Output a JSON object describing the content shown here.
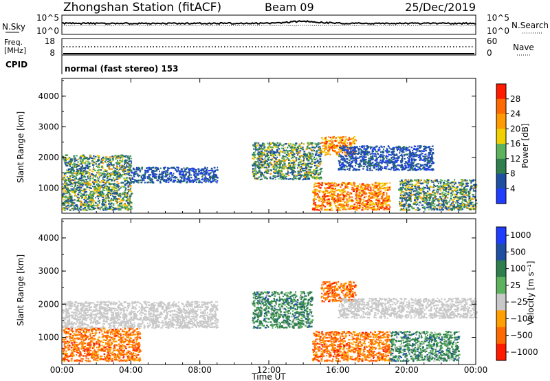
{
  "header": {
    "station": "Zhongshan Station (fitACF)",
    "beam": "Beam 09",
    "date": "25/Dec/2019"
  },
  "panels": {
    "nsky": {
      "label": "N.Sky",
      "top_tick": "10^5",
      "bottom_tick": "10^0",
      "right_top_tick": "10^5",
      "right_bottom_tick": "10^0",
      "right_label": "N.Search"
    },
    "freq": {
      "label_line1": "Freq.",
      "label_line2": "[MHz]",
      "top_tick": "18",
      "bottom_tick": "8",
      "right_top_tick": "60",
      "right_bottom_tick": "0",
      "right_label": "Nave"
    },
    "cpid": {
      "label": "CPID",
      "text": "normal (fast stereo) 153"
    }
  },
  "chart_data": [
    {
      "type": "heatmap",
      "name": "power",
      "ylabel": "Slant Range [km]",
      "yticks": [
        1000,
        2000,
        3000,
        4000
      ],
      "ylim": [
        180,
        4580
      ],
      "xlim_hours": [
        0,
        24
      ],
      "colorbar": {
        "label": "Power [dB]",
        "ticks": [
          "4",
          "8",
          "12",
          "16",
          "20",
          "24",
          "28"
        ],
        "colors": [
          "#1f3cff",
          "#1f4fa3",
          "#2e7e4e",
          "#5db35d",
          "#f0d000",
          "#ff9a00",
          "#ff6a00",
          "#ff1a00"
        ]
      },
      "regions": [
        {
          "t0": 0.0,
          "t1": 4.0,
          "r0": 300,
          "r1": 2100,
          "level": "mixed"
        },
        {
          "t0": 4.0,
          "t1": 9.0,
          "r0": 1200,
          "r1": 1700,
          "level": "low"
        },
        {
          "t0": 11.0,
          "t1": 15.0,
          "r0": 1300,
          "r1": 2500,
          "level": "mixed"
        },
        {
          "t0": 14.5,
          "t1": 19.0,
          "r0": 300,
          "r1": 1200,
          "level": "high"
        },
        {
          "t0": 15.0,
          "t1": 17.0,
          "r0": 2100,
          "r1": 2700,
          "level": "high"
        },
        {
          "t0": 16.0,
          "t1": 21.5,
          "r0": 1600,
          "r1": 2400,
          "level": "low"
        },
        {
          "t0": 19.5,
          "t1": 24.0,
          "r0": 300,
          "r1": 1300,
          "level": "mixed"
        }
      ]
    },
    {
      "type": "heatmap",
      "name": "velocity",
      "ylabel": "Slant Range [km]",
      "xlabel": "Time UT",
      "yticks": [
        1000,
        2000,
        3000,
        4000
      ],
      "ylim": [
        180,
        4580
      ],
      "xticks": [
        "00:00",
        "04:00",
        "08:00",
        "12:00",
        "16:00",
        "20:00",
        "00:00"
      ],
      "colorbar": {
        "label": "Velocity [m s⁻¹]",
        "ticks": [
          "1000",
          "500",
          "100",
          "25",
          "−25",
          "−100",
          "−500",
          "−1000"
        ],
        "colors": [
          "#1f3cff",
          "#1f4fa3",
          "#2e7e4e",
          "#5db35d",
          "#c8c8c8",
          "#ffa000",
          "#ff6a00",
          "#ff1a00"
        ]
      },
      "regions": [
        {
          "t0": 0.0,
          "t1": 4.5,
          "r0": 300,
          "r1": 1300,
          "level": "neg"
        },
        {
          "t0": 0.0,
          "t1": 9.0,
          "r0": 1300,
          "r1": 2100,
          "level": "zero"
        },
        {
          "t0": 11.0,
          "t1": 14.5,
          "r0": 1300,
          "r1": 2400,
          "level": "pos"
        },
        {
          "t0": 14.5,
          "t1": 19.0,
          "r0": 300,
          "r1": 1200,
          "level": "neg"
        },
        {
          "t0": 15.0,
          "t1": 17.0,
          "r0": 2100,
          "r1": 2700,
          "level": "neg"
        },
        {
          "t0": 16.0,
          "t1": 24.0,
          "r0": 1600,
          "r1": 2200,
          "level": "zero"
        },
        {
          "t0": 19.0,
          "t1": 23.0,
          "r0": 300,
          "r1": 1200,
          "level": "pos"
        }
      ]
    }
  ]
}
